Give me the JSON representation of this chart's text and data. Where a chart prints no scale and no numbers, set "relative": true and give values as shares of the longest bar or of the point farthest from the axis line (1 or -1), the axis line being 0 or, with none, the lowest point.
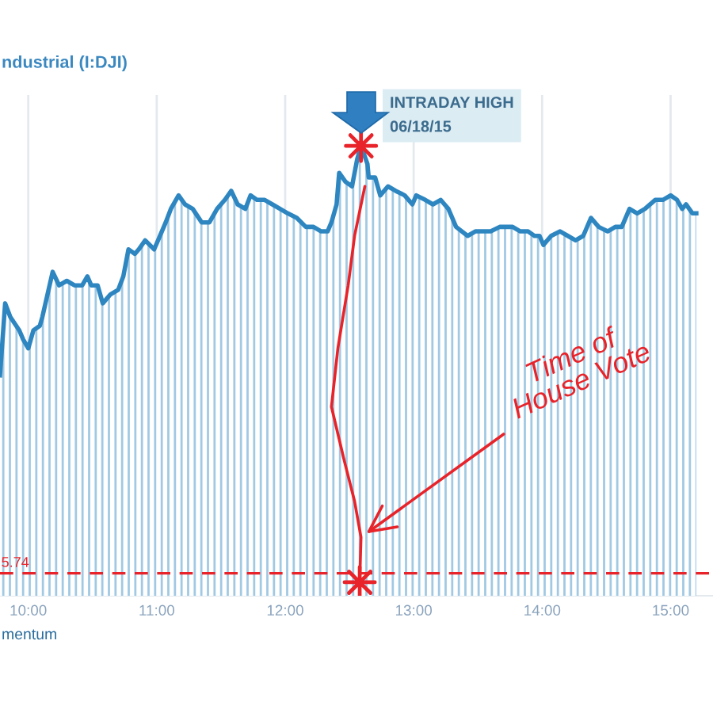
{
  "chart_data": {
    "type": "area",
    "title": "ndustrial (I:DJI)",
    "relative": true,
    "grid": "x",
    "xlim": [
      9.78,
      15.33
    ],
    "xticks": [
      {
        "value": 10,
        "label": "10:00"
      },
      {
        "value": 11,
        "label": "11:00"
      },
      {
        "value": 12,
        "label": "12:00"
      },
      {
        "value": 13,
        "label": "13:00"
      },
      {
        "value": 14,
        "label": "14:00"
      },
      {
        "value": 15,
        "label": "15:00"
      }
    ],
    "series": [
      {
        "color": "#2e86c1",
        "x": [
          9.78,
          9.82,
          9.86,
          9.93,
          9.96,
          10.0,
          10.04,
          10.09,
          10.11,
          10.19,
          10.24,
          10.3,
          10.36,
          10.42,
          10.46,
          10.49,
          10.54,
          10.58,
          10.64,
          10.7,
          10.74,
          10.78,
          10.83,
          10.86,
          10.91,
          10.98,
          11.04,
          11.07,
          11.11,
          11.17,
          11.22,
          11.28,
          11.35,
          11.41,
          11.47,
          11.53,
          11.58,
          11.63,
          11.69,
          11.73,
          11.78,
          11.84,
          11.9,
          11.96,
          12.02,
          12.09,
          12.16,
          12.22,
          12.28,
          12.33,
          12.36,
          12.4,
          12.42,
          12.47,
          12.52,
          12.56,
          12.59,
          12.64,
          12.65,
          12.7,
          12.74,
          12.8,
          12.86,
          12.93,
          12.99,
          13.02,
          13.09,
          13.15,
          13.21,
          13.27,
          13.33,
          13.42,
          13.48,
          13.54,
          13.6,
          13.67,
          13.73,
          13.77,
          13.83,
          13.89,
          13.94,
          13.98,
          14.01,
          14.07,
          14.14,
          14.2,
          14.26,
          14.32,
          14.38,
          14.44,
          14.51,
          14.57,
          14.62,
          14.68,
          14.74,
          14.8,
          14.88,
          14.94,
          15.0,
          15.05,
          15.09,
          15.12,
          15.17,
          15.2
        ],
        "values": [
          0.49,
          0.65,
          0.62,
          0.59,
          0.57,
          0.55,
          0.59,
          0.6,
          0.62,
          0.72,
          0.69,
          0.7,
          0.69,
          0.69,
          0.71,
          0.69,
          0.69,
          0.65,
          0.67,
          0.68,
          0.71,
          0.77,
          0.76,
          0.77,
          0.79,
          0.77,
          0.81,
          0.83,
          0.86,
          0.89,
          0.87,
          0.86,
          0.83,
          0.83,
          0.86,
          0.88,
          0.9,
          0.87,
          0.86,
          0.89,
          0.88,
          0.88,
          0.87,
          0.86,
          0.85,
          0.84,
          0.82,
          0.82,
          0.81,
          0.81,
          0.83,
          0.87,
          0.94,
          0.92,
          0.91,
          0.97,
          1.0,
          0.96,
          0.93,
          0.93,
          0.89,
          0.91,
          0.9,
          0.89,
          0.87,
          0.89,
          0.88,
          0.87,
          0.88,
          0.86,
          0.82,
          0.8,
          0.81,
          0.81,
          0.81,
          0.82,
          0.82,
          0.82,
          0.81,
          0.81,
          0.8,
          0.8,
          0.78,
          0.8,
          0.81,
          0.8,
          0.79,
          0.8,
          0.84,
          0.82,
          0.81,
          0.82,
          0.82,
          0.86,
          0.85,
          0.86,
          0.88,
          0.88,
          0.89,
          0.88,
          0.86,
          0.87,
          0.85,
          0.85
        ]
      },
      {
        "type": "line",
        "color": "#e8232a",
        "x": [
          12.62,
          12.54,
          12.49,
          12.41,
          12.36,
          12.46,
          12.54,
          12.59,
          12.58
        ],
        "values": [
          0.91,
          0.8,
          0.69,
          0.55,
          0.42,
          0.3,
          0.21,
          0.13,
          0.03
        ]
      },
      {
        "type": "scatter",
        "color": "#e8232a",
        "marker": "star",
        "x": [
          12.59,
          12.58
        ],
        "values": [
          1.0,
          0.03
        ]
      }
    ],
    "ref_lines": [
      {
        "axis": "y",
        "value": 0.05,
        "color": "#e8232a",
        "line_style": "dashed"
      }
    ],
    "annotations": [
      "INTRADAY HIGH\n06/18/15",
      {
        "text": "Time of\nHouse Vote",
        "x": 12.59,
        "y": 0.13
      },
      {
        "text": "5.74",
        "x": 9.79,
        "y": 0.05
      },
      "mentum"
    ]
  }
}
